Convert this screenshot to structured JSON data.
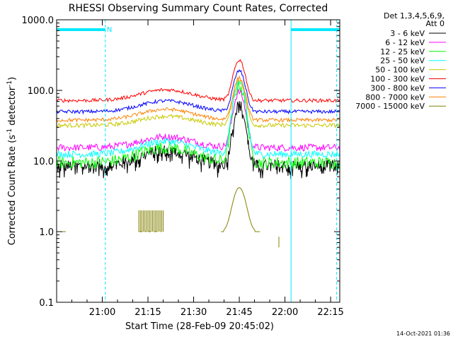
{
  "chart_data": {
    "type": "line",
    "title": "RHESSI Observing Summary Count Rates, Corrected",
    "xlabel": "Start Time (28-Feb-09 20:45:02)",
    "ylabel": "Corrected Count Rate (s^-1 detector^-1)",
    "ylabel_parts": {
      "main": "Corrected Count Rate (s",
      "sup1": "-1",
      "mid": " detector",
      "sup2": "-1",
      "end": ")"
    },
    "yscale": "log",
    "ylim": [
      0.1,
      1000
    ],
    "xlim_minutes": [
      0,
      93
    ],
    "x_ticks": [
      {
        "label": "21:00",
        "minute": 15
      },
      {
        "label": "21:15",
        "minute": 30
      },
      {
        "label": "21:30",
        "minute": 45
      },
      {
        "label": "21:45",
        "minute": 60
      },
      {
        "label": "22:00",
        "minute": 75
      },
      {
        "label": "22:15",
        "minute": 90
      }
    ],
    "y_ticks": [
      {
        "label": "0.1",
        "value": 0.1
      },
      {
        "label": "1.0",
        "value": 1
      },
      {
        "label": "10.0",
        "value": 10
      },
      {
        "label": "100.0",
        "value": 100
      },
      {
        "label": "1000.0",
        "value": 1000
      }
    ],
    "legend_header": [
      "Det 1,3,4,5,6,9,",
      "Att 0"
    ],
    "legend_position": "right",
    "series": [
      {
        "name": "3 - 6 keV",
        "color": "#000000",
        "base": 8.5,
        "hump": 5.5,
        "peak": 62,
        "noise": 0.09,
        "spikes": true
      },
      {
        "name": "6 - 12 keV",
        "color": "#ff00ff",
        "base": 15.5,
        "hump": 6.5,
        "peak": 95,
        "noise": 0.05,
        "spikes": false
      },
      {
        "name": "12 - 25 keV",
        "color": "#00ff00",
        "base": 9.5,
        "hump": 6.0,
        "peak": 120,
        "noise": 0.09,
        "spikes": false
      },
      {
        "name": "25 - 50 keV",
        "color": "#00ffff",
        "base": 12.5,
        "hump": 6.5,
        "peak": 130,
        "noise": 0.05,
        "spikes": false
      },
      {
        "name": "50 - 100 keV",
        "color": "#c8c800",
        "base": 32,
        "hump": 11,
        "peak": 140,
        "noise": 0.03,
        "spikes": false
      },
      {
        "name": "100 - 300 keV",
        "color": "#ff0000",
        "base": 72,
        "hump": 30,
        "peak": 270,
        "noise": 0.025,
        "spikes": false
      },
      {
        "name": "300 - 800 keV",
        "color": "#0000ff",
        "base": 50,
        "hump": 21,
        "peak": 190,
        "noise": 0.025,
        "spikes": false
      },
      {
        "name": "800 - 7000 keV",
        "color": "#ff8000",
        "base": 38,
        "hump": 16,
        "peak": 150,
        "noise": 0.025,
        "spikes": false
      },
      {
        "name": "7000 - 15000 keV",
        "color": "#808000",
        "base": 1.0,
        "hump": 0,
        "peak": 4.2,
        "noise": 0,
        "spikes": false
      }
    ],
    "annotations": [
      {
        "type": "flag_bar",
        "label": "N",
        "start_minute": 0,
        "end_minute": 16
      },
      {
        "type": "flag_bar",
        "label": "",
        "start_minute": 77,
        "end_minute": 93
      },
      {
        "type": "vline_solid",
        "minute": 0
      },
      {
        "type": "vline_dashed",
        "minute": 16
      },
      {
        "type": "vline_solid",
        "minute": 77
      },
      {
        "type": "vline_dashed",
        "minute": 92
      }
    ],
    "colors": {
      "annotation": "#00e8ff"
    }
  },
  "footer": {
    "timestamp": "14-Oct-2021 01:36"
  }
}
